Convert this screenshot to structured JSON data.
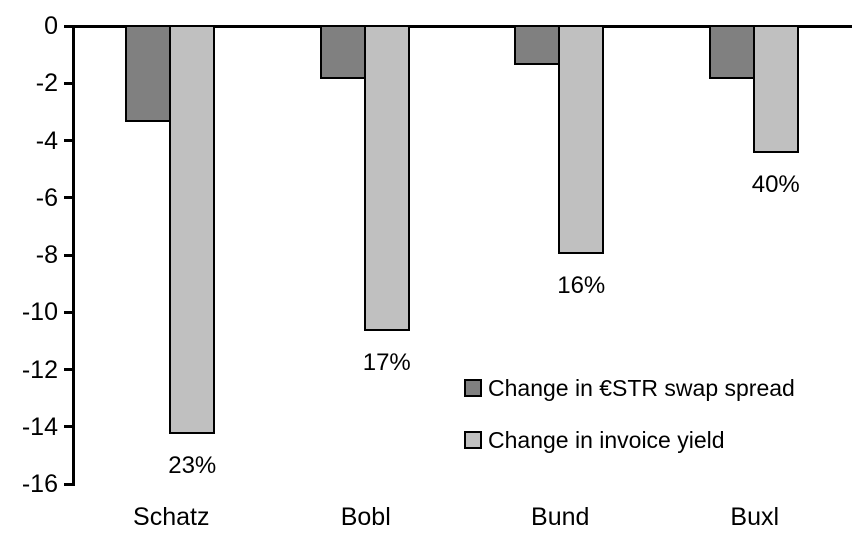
{
  "chart_data": {
    "type": "bar",
    "title": "",
    "xlabel": "",
    "ylabel": "",
    "categories": [
      "Schatz",
      "Bobl",
      "Bund",
      "Buxl"
    ],
    "series": [
      {
        "name": "Change in €STR swap spread",
        "color": "#808080",
        "values": [
          -3.3,
          -1.8,
          -1.3,
          -1.8
        ]
      },
      {
        "name": "Change in invoice yield",
        "color": "#c0c0c0",
        "values": [
          -14.2,
          -10.6,
          -7.9,
          -4.4
        ],
        "data_labels": [
          "23%",
          "17%",
          "16%",
          "40%"
        ]
      }
    ],
    "ylim": [
      -16,
      0
    ],
    "yticks": [
      0,
      -2,
      -4,
      -6,
      -8,
      -10,
      -12,
      -14,
      -16
    ],
    "grid": false,
    "legend_position": "inside-right-middle",
    "bar_outline_color": "#000000",
    "axis_color": "#000000",
    "background_color": "#ffffff"
  }
}
